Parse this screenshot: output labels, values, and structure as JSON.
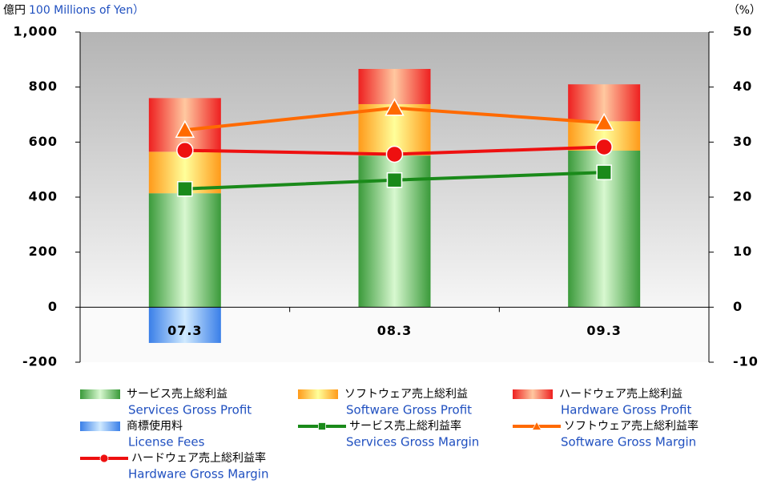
{
  "chart_data": {
    "type": "stacked_bar_line",
    "y_unit": "億円",
    "y_label": "100 Millions of Yen）",
    "y2_label": "（%）",
    "categories": [
      "07.3",
      "08.3",
      "09.3"
    ],
    "ylim": [
      -200,
      1000
    ],
    "yticks": [
      -200,
      0,
      200,
      400,
      600,
      800,
      {
        "value": 1000,
        "label": "1,000"
      }
    ],
    "y2lim": [
      -10,
      50
    ],
    "y2ticks": [
      -10,
      0,
      10,
      20,
      30,
      40,
      50
    ],
    "series": [
      {
        "name": "サービス売上総利益",
        "name_en": "Services Gross Profit",
        "kind": "bar",
        "color": "#3a9a3a",
        "light": "#d8f8d0",
        "values": [
          414,
          551,
          569
        ]
      },
      {
        "name": "ソフトウェア売上総利益",
        "name_en": "Software Gross Profit",
        "kind": "bar",
        "color": "#ff9a1a",
        "light": "#ffff9a",
        "values": [
          151,
          187,
          107
        ]
      },
      {
        "name": "ハードウェア売上総利益",
        "name_en": "Hardware Gross Profit",
        "kind": "bar",
        "color": "#ee2020",
        "light": "#ffc8a0",
        "values": [
          195,
          128,
          134
        ]
      },
      {
        "name": "商標使用料",
        "name_en": "License Fees",
        "kind": "bar",
        "color": "#3a7fe8",
        "light": "#d0eaff",
        "values": [
          -130,
          0,
          0
        ]
      },
      {
        "name": "サービス売上総利益率",
        "name_en": "Services Gross Margin",
        "kind": "line",
        "axis": "y2",
        "marker": "square",
        "color": "#1a8a1a",
        "values": [
          21.5,
          23.1,
          24.5
        ]
      },
      {
        "name": "ソフトウェア売上総利益率",
        "name_en": "Software Gross Margin",
        "kind": "line",
        "axis": "y2",
        "marker": "triangle",
        "color": "#ff6a00",
        "values": [
          32.2,
          36.2,
          33.5
        ]
      },
      {
        "name": "ハードウェア売上総利益率",
        "name_en": "Hardware Gross Margin",
        "kind": "line",
        "axis": "y2",
        "marker": "circle",
        "color": "#ee1010",
        "values": [
          28.5,
          27.8,
          29.1
        ]
      }
    ]
  }
}
